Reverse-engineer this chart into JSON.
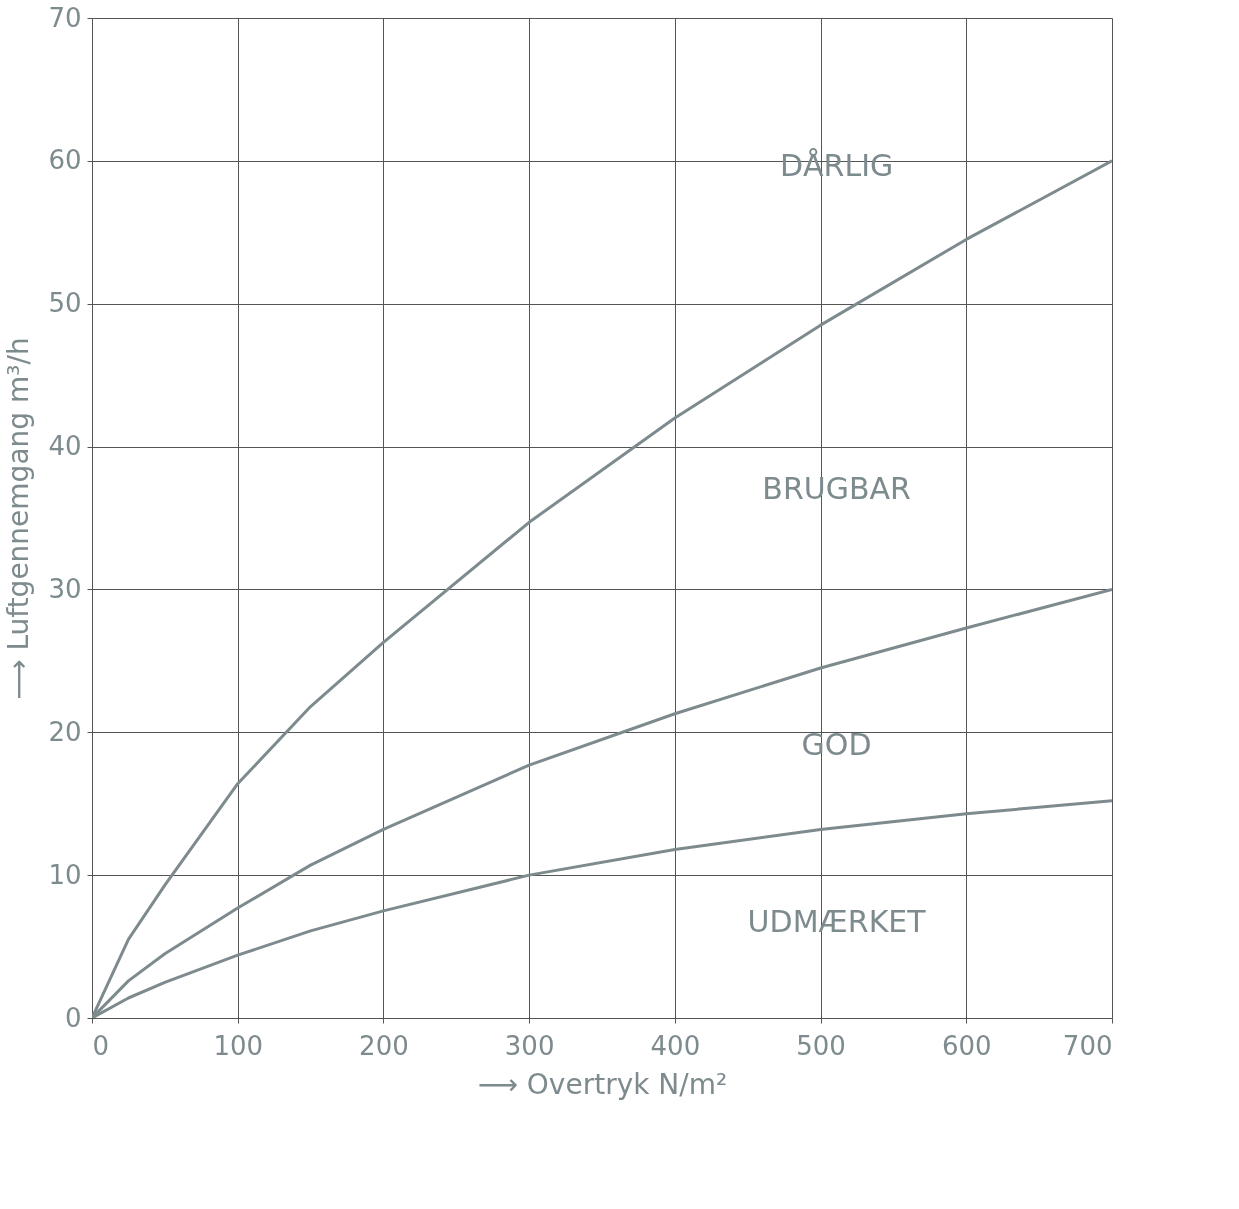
{
  "chart_data": {
    "type": "line",
    "xlabel": "⟶ Overtryk  N/m²",
    "ylabel": "⟶ Luftgennemgang  m³/h",
    "xlim": [
      0,
      700
    ],
    "ylim": [
      0,
      70
    ],
    "xticks": [
      0,
      100,
      200,
      300,
      400,
      500,
      600,
      700
    ],
    "yticks": [
      0,
      10,
      20,
      30,
      40,
      50,
      60,
      70
    ],
    "grid": true,
    "legend": false,
    "marker": "none",
    "line_style": "solid",
    "series": [
      {
        "color": "#7d8a8e",
        "x": [
          0,
          25,
          50,
          100,
          150,
          200,
          300,
          400,
          500,
          600,
          700
        ],
        "values": [
          0,
          5.5,
          9.3,
          16.4,
          21.8,
          26.3,
          34.7,
          42,
          48.5,
          54.5,
          60
        ]
      },
      {
        "color": "#7d8a8e",
        "x": [
          0,
          25,
          50,
          100,
          150,
          200,
          300,
          400,
          500,
          600,
          700
        ],
        "values": [
          0,
          2.6,
          4.5,
          7.7,
          10.7,
          13.2,
          17.7,
          21.3,
          24.5,
          27.3,
          30
        ]
      },
      {
        "color": "#7d8a8e",
        "x": [
          0,
          25,
          50,
          100,
          150,
          200,
          300,
          400,
          500,
          600,
          700
        ],
        "values": [
          0,
          1.4,
          2.5,
          4.4,
          6.1,
          7.5,
          10,
          11.8,
          13.2,
          14.3,
          15.2
        ]
      }
    ],
    "annotations": [
      "DÅRLIG",
      "BRUGBAR",
      "GOD",
      "UDMÆRKET"
    ]
  }
}
